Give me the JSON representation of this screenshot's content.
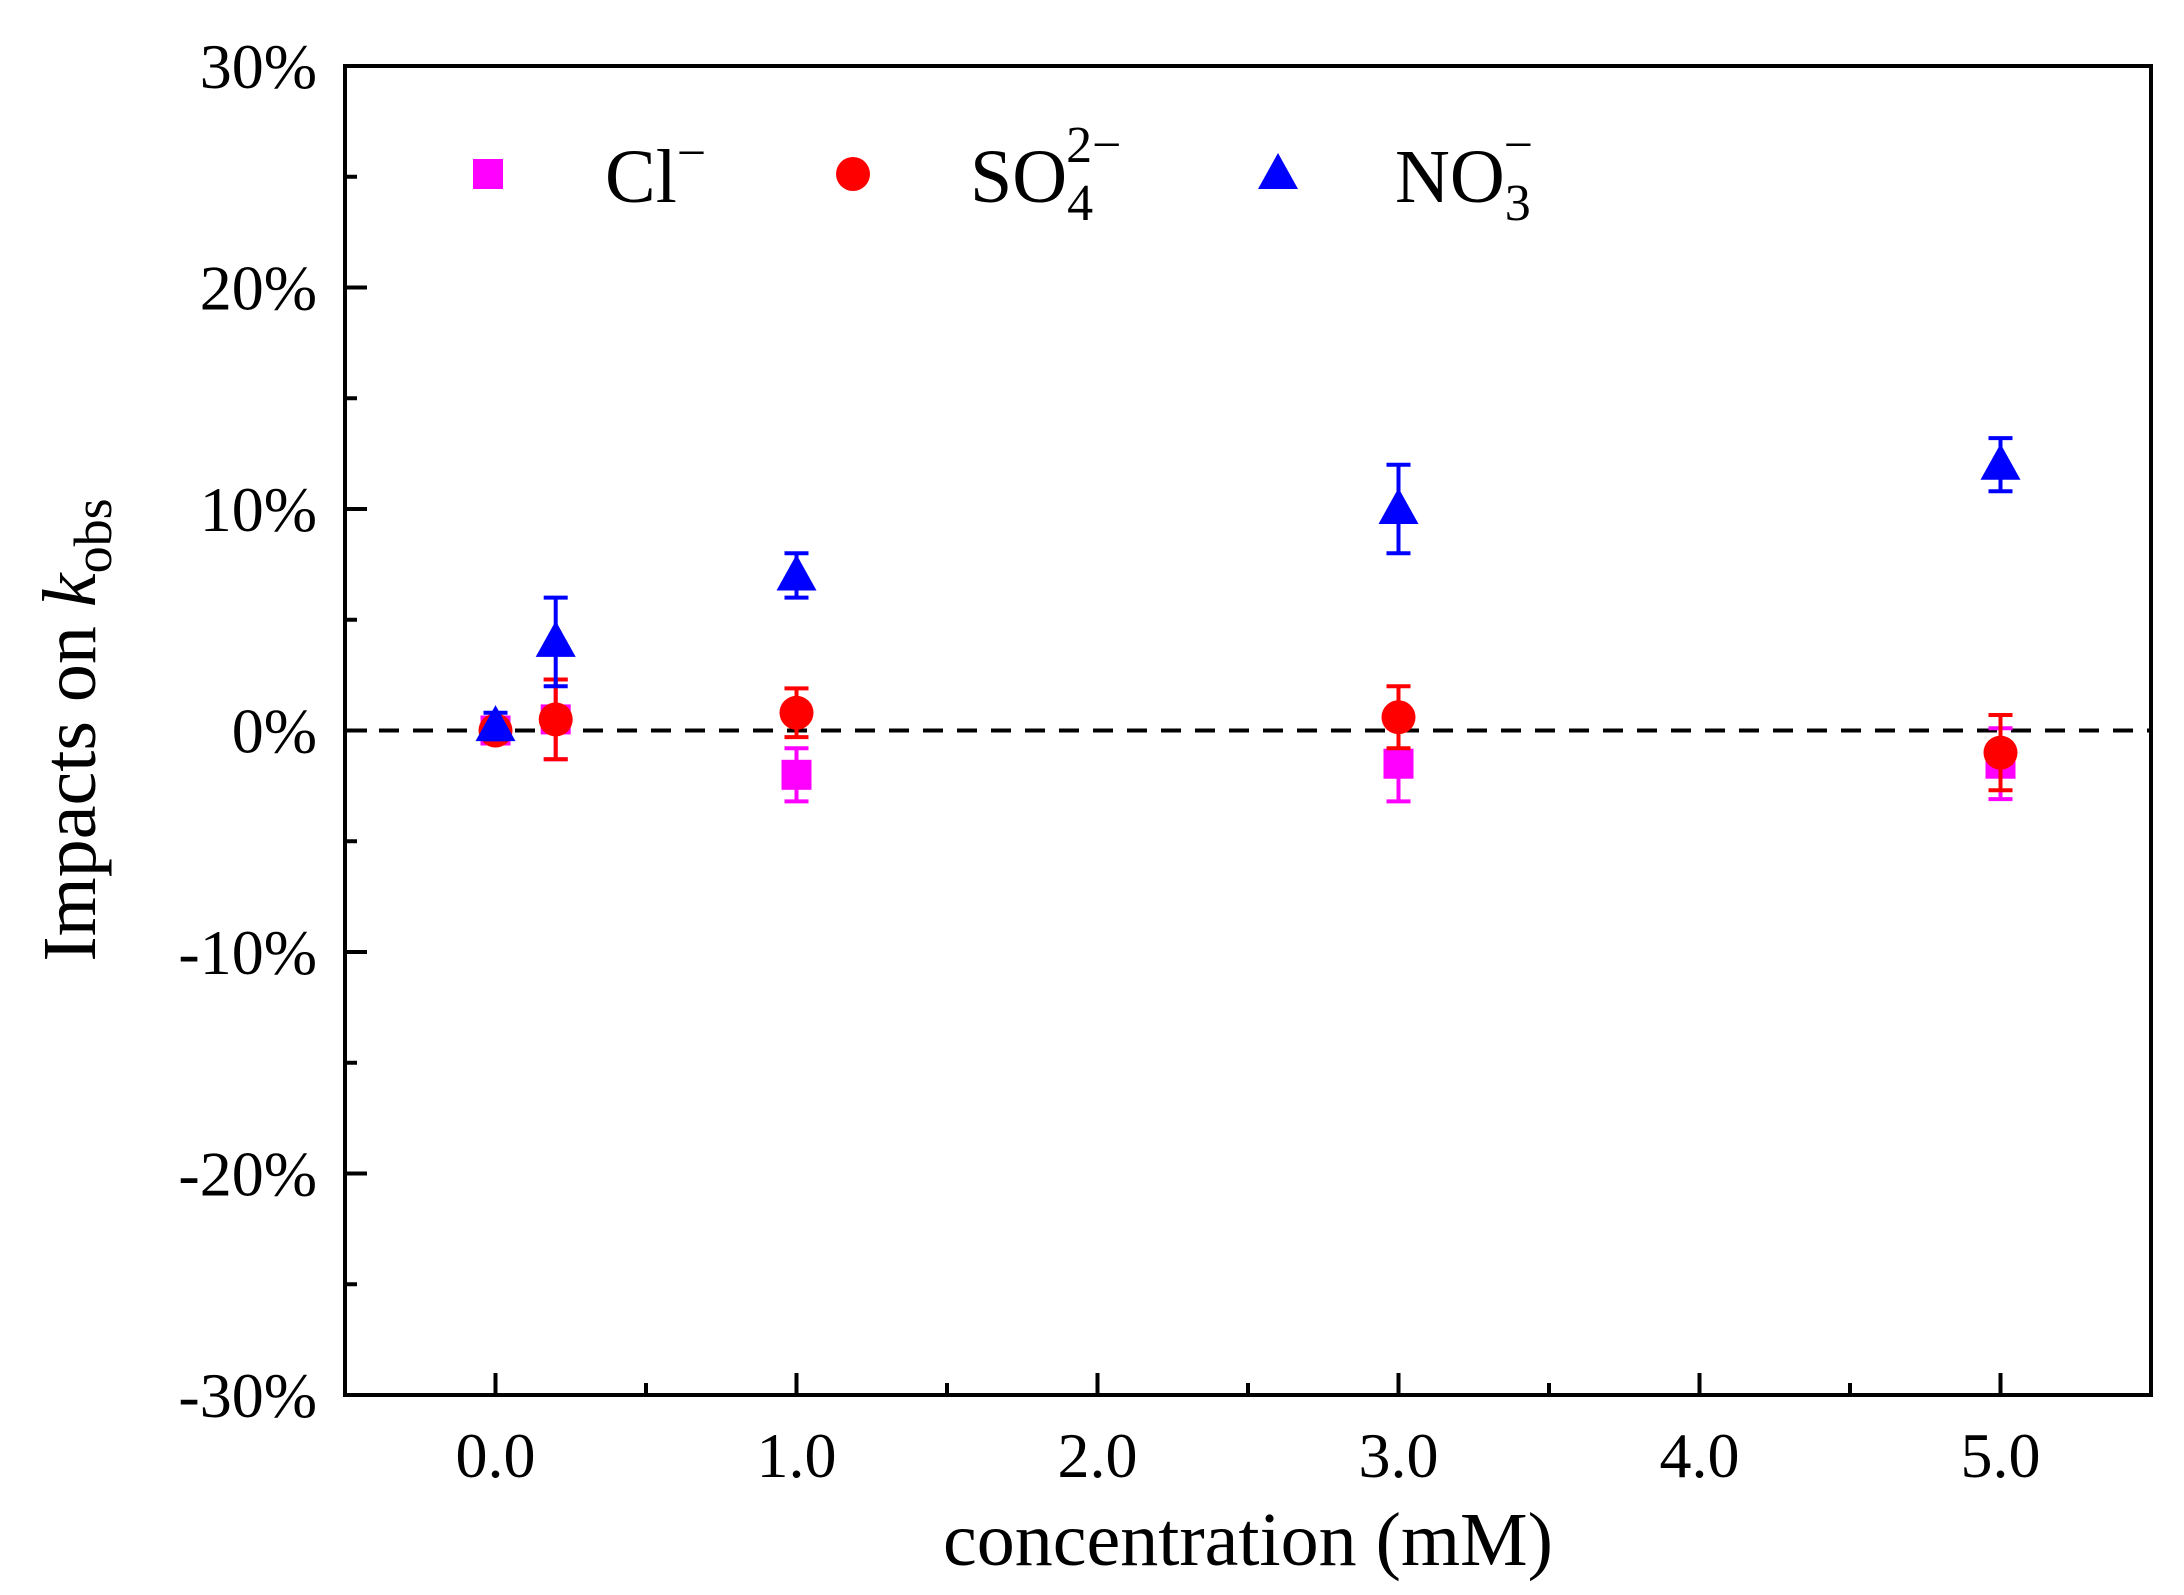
{
  "chart_data": {
    "type": "scatter",
    "xlabel": "concentration (mM)",
    "ylabel": {
      "prefix": "Impacts on ",
      "symbol": "k",
      "subscript": "obs"
    },
    "xlim": [
      -0.5,
      5.5
    ],
    "ylim": [
      -30,
      30
    ],
    "x_ticks": [
      0.0,
      1.0,
      2.0,
      3.0,
      4.0,
      5.0
    ],
    "x_tick_labels": [
      "0.0",
      "1.0",
      "2.0",
      "3.0",
      "4.0",
      "5.0"
    ],
    "y_ticks": [
      -30,
      -20,
      -10,
      0,
      10,
      20,
      30
    ],
    "y_tick_labels": [
      "-30%",
      "-20%",
      "-10%",
      "0%",
      "10%",
      "20%",
      "30%"
    ],
    "reference_line": {
      "y": 0,
      "style": "dashed",
      "color": "#000000"
    },
    "legend_position": "top",
    "series": [
      {
        "name": "Cl−",
        "label_base": "Cl",
        "label_sup": "−",
        "label_sub": "",
        "marker": "square",
        "color": "#ff00ff",
        "x": [
          0.0,
          0.2,
          1.0,
          3.0,
          5.0
        ],
        "y": [
          0.0,
          0.5,
          -2.0,
          -1.5,
          -1.5
        ],
        "err": [
          0.5,
          1.8,
          1.2,
          1.7,
          1.6
        ]
      },
      {
        "name": "SO42−",
        "label_base": "SO",
        "label_sup": "2−",
        "label_sub": "4",
        "marker": "circle",
        "color": "#ff0000",
        "x": [
          0.0,
          0.2,
          1.0,
          3.0,
          5.0
        ],
        "y": [
          0.0,
          0.5,
          0.8,
          0.6,
          -1.0
        ],
        "err": [
          0.4,
          1.8,
          1.1,
          1.4,
          1.7
        ]
      },
      {
        "name": "NO3−",
        "label_base": "NO",
        "label_sup": "−",
        "label_sub": "3",
        "marker": "triangle",
        "color": "#0000ff",
        "x": [
          0.0,
          0.2,
          1.0,
          3.0,
          5.0
        ],
        "y": [
          0.2,
          4.0,
          7.0,
          10.0,
          12.0
        ],
        "err": [
          0.6,
          2.0,
          1.0,
          2.0,
          1.2
        ]
      }
    ]
  }
}
